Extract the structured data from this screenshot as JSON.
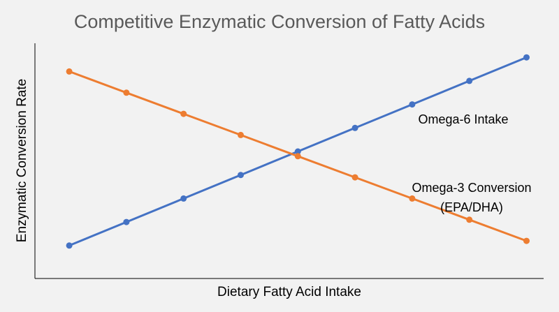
{
  "chart_data": {
    "type": "line",
    "title": "Competitive Enzymatic Conversion of Fatty Acids",
    "xlabel": "Dietary Fatty Acid Intake",
    "ylabel": "Enzymatic Conversion Rate",
    "x": [
      1,
      2,
      3,
      4,
      5,
      6,
      7,
      8,
      9
    ],
    "xlim": [
      0.4,
      9.3
    ],
    "ylim": [
      0,
      100
    ],
    "grid": false,
    "series": [
      {
        "name": "Omega-6 Intake",
        "color": "#4472c4",
        "values": [
          14,
          24,
          34,
          44,
          54,
          64,
          74,
          84,
          94
        ]
      },
      {
        "name_lines": [
          "Omega-3 Conversion",
          "(EPA/DHA)"
        ],
        "color": "#ed7d31",
        "values": [
          88,
          79,
          70,
          61,
          52,
          43,
          34,
          25,
          16
        ]
      }
    ]
  }
}
